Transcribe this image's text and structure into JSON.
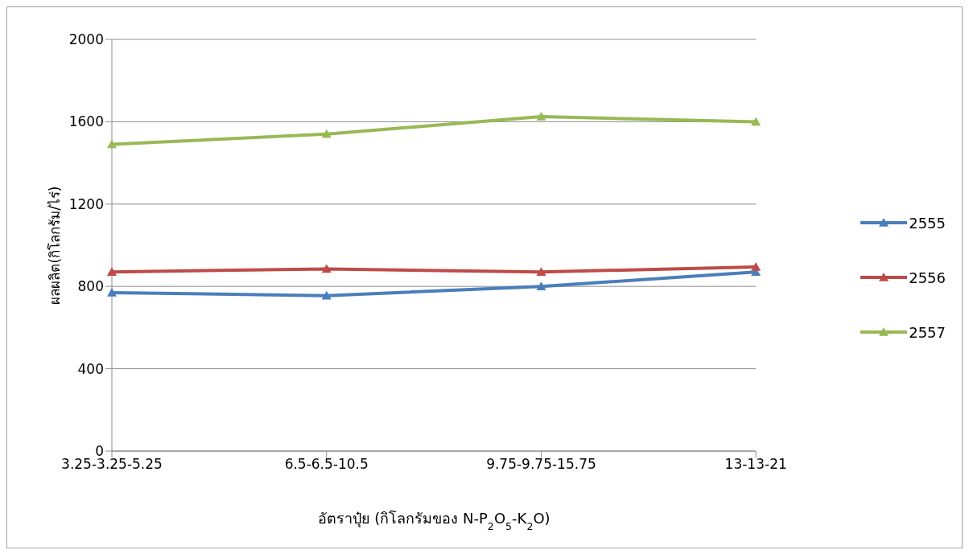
{
  "chart_data": {
    "type": "line",
    "xlabel": "อัตราปุ๋ย (กิโลกรัมของ N-P$_{2}$O$_{5}$-K$_{2}$O)",
    "ylabel": "ผลผลิต(กิโลกรัม/ไร่)",
    "categories": [
      "3.25-3.25-5.25",
      "6.5-6.5-10.5",
      "9.75-9.75-15.75",
      "13-13-21"
    ],
    "series": [
      {
        "name": "2555",
        "color": "#4a7ebb",
        "values": [
          770,
          755,
          800,
          870
        ]
      },
      {
        "name": "2556",
        "color": "#be4b48",
        "values": [
          870,
          885,
          870,
          895
        ]
      },
      {
        "name": "2557",
        "color": "#98b954",
        "values": [
          1490,
          1540,
          1625,
          1600
        ]
      }
    ],
    "ylim": [
      0,
      2000
    ],
    "yticks": [
      0,
      400,
      800,
      1200,
      1600,
      2000
    ],
    "grid": "y",
    "legend": "right",
    "marker": "triangle",
    "line_style": "solid"
  }
}
